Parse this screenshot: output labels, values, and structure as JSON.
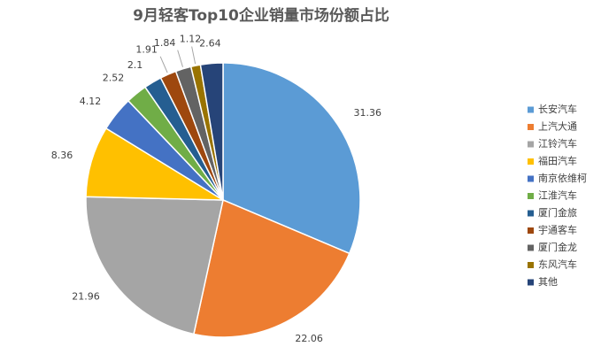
{
  "chart_data": {
    "type": "pie",
    "title": "9月轻客Top10企业销量市场份额占比",
    "categories": [
      "长安汽车",
      "上汽大通",
      "江铃汽车",
      "福田汽车",
      "南京依维柯",
      "江淮汽车",
      "厦门金旅",
      "宇通客车",
      "厦门金龙",
      "东风汽车",
      "其他"
    ],
    "values": [
      31.36,
      22.06,
      21.96,
      8.36,
      4.12,
      2.52,
      2.1,
      1.91,
      1.84,
      1.12,
      2.64
    ],
    "colors": [
      "#5b9bd5",
      "#ed7d31",
      "#a5a5a5",
      "#ffc000",
      "#4472c4",
      "#70ad47",
      "#255e91",
      "#9e480e",
      "#636363",
      "#997300",
      "#264478"
    ],
    "legend": "right"
  }
}
